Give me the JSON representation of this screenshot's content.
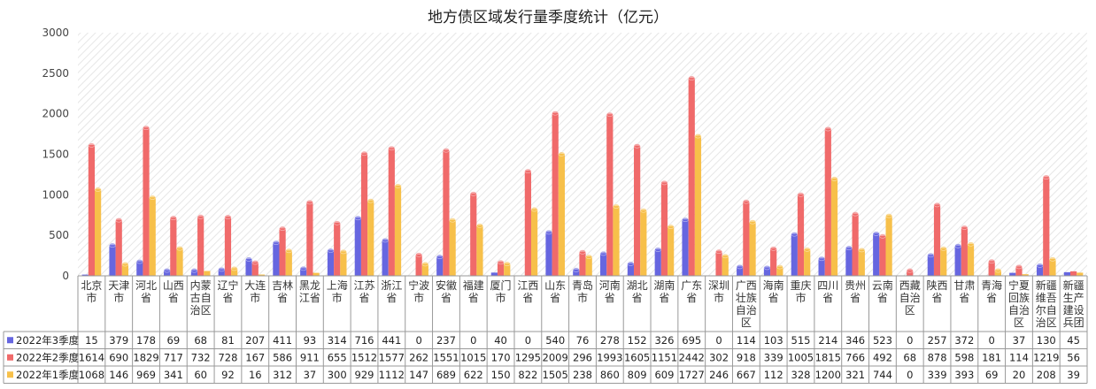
{
  "chart_data": {
    "type": "bar",
    "title": "地方债区域发行量季度统计（亿元）",
    "ylim": [
      0,
      3000
    ],
    "yticks": [
      0,
      500,
      1000,
      1500,
      2000,
      2500,
      3000
    ],
    "categories": [
      [
        "北京",
        "市"
      ],
      [
        "天津",
        "市"
      ],
      [
        "河北",
        "省"
      ],
      [
        "山西",
        "省"
      ],
      [
        "内蒙",
        "古自",
        "治区"
      ],
      [
        "辽宁",
        "省"
      ],
      [
        "大连",
        "市"
      ],
      [
        "吉林",
        "省"
      ],
      [
        "黑龙",
        "江省"
      ],
      [
        "上海",
        "市"
      ],
      [
        "江苏",
        "省"
      ],
      [
        "浙江",
        "省"
      ],
      [
        "宁波",
        "市"
      ],
      [
        "安徽",
        "省"
      ],
      [
        "福建",
        "省"
      ],
      [
        "厦门",
        "市"
      ],
      [
        "江西",
        "省"
      ],
      [
        "山东",
        "省"
      ],
      [
        "青岛",
        "市"
      ],
      [
        "河南",
        "省"
      ],
      [
        "湖北",
        "省"
      ],
      [
        "湖南",
        "省"
      ],
      [
        "广东",
        "省"
      ],
      [
        "深圳",
        "市"
      ],
      [
        "广西",
        "壮族",
        "自治",
        "区"
      ],
      [
        "海南",
        "省"
      ],
      [
        "重庆",
        "市"
      ],
      [
        "四川",
        "省"
      ],
      [
        "贵州",
        "省"
      ],
      [
        "云南",
        "省"
      ],
      [
        "西藏",
        "自治",
        "区"
      ],
      [
        "陕西",
        "省"
      ],
      [
        "甘肃",
        "省"
      ],
      [
        "青海",
        "省"
      ],
      [
        "宁夏",
        "回族",
        "自治",
        "区"
      ],
      [
        "新疆",
        "维吾",
        "尔自",
        "治区"
      ],
      [
        "新疆",
        "生产",
        "建设",
        "兵团"
      ]
    ],
    "series": [
      {
        "name": "2022年3季度",
        "color": "#6666e0",
        "values": [
          15,
          379,
          178,
          69,
          68,
          81,
          207,
          411,
          93,
          314,
          716,
          441,
          0,
          237,
          0,
          40,
          0,
          540,
          76,
          278,
          152,
          326,
          695,
          0,
          114,
          103,
          515,
          214,
          346,
          523,
          0,
          257,
          372,
          0,
          37,
          130,
          45
        ]
      },
      {
        "name": "2022年2季度",
        "color": "#f06a6a",
        "values": [
          1614,
          690,
          1829,
          717,
          732,
          728,
          167,
          586,
          911,
          655,
          1512,
          1577,
          262,
          1551,
          1015,
          170,
          1295,
          2009,
          296,
          1993,
          1605,
          1151,
          2442,
          302,
          918,
          339,
          1005,
          1815,
          766,
          492,
          68,
          878,
          598,
          181,
          114,
          1219,
          56
        ]
      },
      {
        "name": "2022年1季度",
        "color": "#f7c04a",
        "values": [
          1068,
          146,
          969,
          341,
          60,
          92,
          16,
          312,
          37,
          300,
          929,
          1112,
          147,
          689,
          622,
          150,
          822,
          1505,
          238,
          860,
          809,
          609,
          1727,
          246,
          667,
          112,
          328,
          1200,
          321,
          744,
          0,
          339,
          393,
          69,
          20,
          208,
          39
        ]
      }
    ],
    "grid": false,
    "legend": "table-left"
  }
}
